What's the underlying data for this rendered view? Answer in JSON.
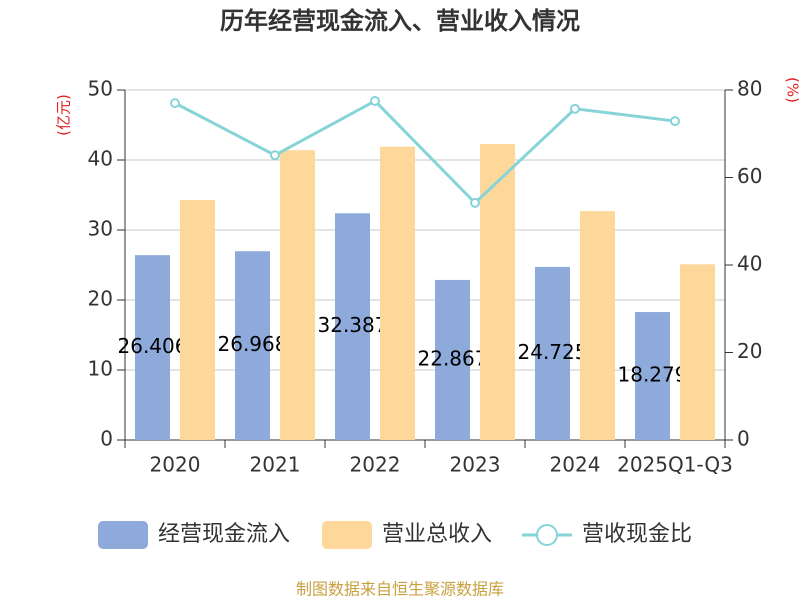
{
  "chart_data": {
    "type": "bar-line",
    "title": "历年经营现金流入、营业收入情况",
    "y_label": "(亿元)",
    "y2_label": "(%)",
    "categories": [
      "2020",
      "2021",
      "2022",
      "2023",
      "2024",
      "2025Q1-Q3"
    ],
    "series": [
      {
        "name": "经营现金流入",
        "type": "bar",
        "color": "#8eaadb",
        "values": [
          26.406,
          26.968,
          32.387,
          22.867,
          24.725,
          18.279
        ]
      },
      {
        "name": "营业总收入",
        "type": "bar",
        "color": "#fdd89a",
        "values": [
          34.3,
          41.4,
          41.9,
          42.3,
          32.7,
          25.1
        ]
      },
      {
        "name": "营收现金比",
        "type": "line",
        "axis": "y2",
        "color": "#86d4d8",
        "values": [
          77.0,
          65.1,
          77.5,
          54.2,
          75.7,
          72.9
        ]
      }
    ],
    "ylim": [
      0,
      50
    ],
    "yticks": [
      0,
      10,
      20,
      30,
      40,
      50
    ],
    "y2lim": [
      0,
      80
    ],
    "y2ticks": [
      0,
      20,
      40,
      60,
      80
    ],
    "grid": true,
    "legend": "bottom",
    "source": "制图数据来自恒生聚源数据库"
  }
}
